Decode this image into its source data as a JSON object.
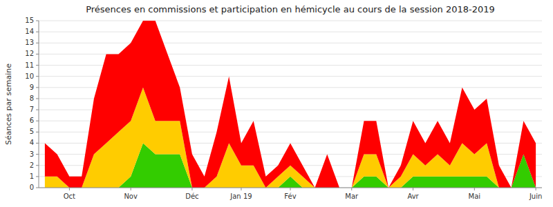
{
  "chart_data": {
    "type": "area",
    "stacked": true,
    "title": "Présences en commissions et participation en hémicycle au cours de la session 2018-2019",
    "y_label": "Séances par semaine",
    "categories": [
      null,
      null,
      "Oct",
      null,
      null,
      null,
      null,
      "Nov",
      null,
      null,
      null,
      null,
      "Déc",
      null,
      null,
      null,
      "Jan 19",
      null,
      null,
      null,
      "Fév",
      null,
      null,
      null,
      null,
      "Mar",
      null,
      null,
      null,
      null,
      "Avr",
      null,
      null,
      null,
      null,
      "Mai",
      null,
      null,
      null,
      null,
      "Juin"
    ],
    "series": [
      {
        "color": "#33cc00",
        "values": [
          0,
          0,
          0,
          0,
          0,
          0,
          0,
          1,
          4,
          3,
          3,
          3,
          0,
          0,
          0,
          0,
          0,
          0,
          0,
          0,
          1,
          0,
          0,
          0,
          0,
          0,
          1,
          1,
          0,
          0,
          1,
          1,
          1,
          1,
          1,
          1,
          1,
          0,
          0,
          3,
          0
        ]
      },
      {
        "color": "#ffcc00",
        "values": [
          1,
          1,
          0,
          0,
          3,
          4,
          5,
          5,
          5,
          3,
          3,
          3,
          0,
          0,
          1,
          4,
          2,
          2,
          0,
          1,
          1,
          1,
          0,
          0,
          0,
          0,
          2,
          2,
          0,
          1,
          2,
          1,
          2,
          1,
          3,
          2,
          3,
          0,
          0,
          0,
          0
        ]
      },
      {
        "color": "#ff0000",
        "values": [
          3,
          2,
          1,
          1,
          5,
          8,
          7,
          7,
          6,
          9,
          6,
          3,
          3,
          1,
          4,
          6,
          2,
          4,
          1,
          1,
          2,
          1,
          0,
          3,
          0,
          0,
          3,
          3,
          0,
          1,
          3,
          2,
          3,
          2,
          5,
          4,
          4,
          2,
          0,
          3,
          4
        ]
      }
    ],
    "ylim": [
      0,
      15
    ],
    "yticks": [
      0,
      1,
      2,
      3,
      4,
      5,
      6,
      7,
      8,
      9,
      10,
      11,
      12,
      13,
      14,
      15
    ],
    "grid": true
  }
}
